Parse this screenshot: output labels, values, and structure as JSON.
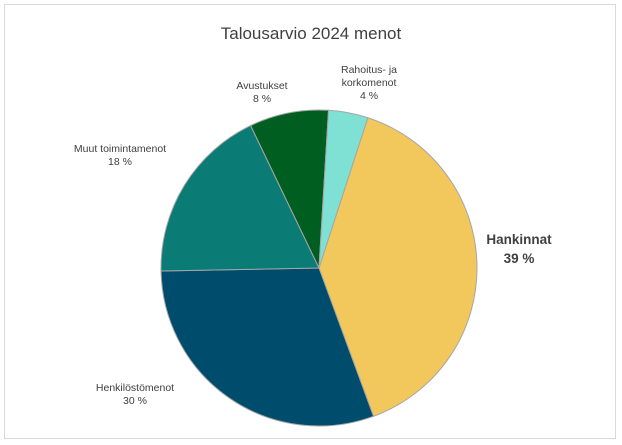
{
  "chart_data": {
    "type": "pie",
    "title": "Talousarvio 2024 menot",
    "start_angle_deg": 18,
    "direction": "clockwise",
    "slices": [
      {
        "label_lines": [
          "Hankinnat"
        ],
        "value": 39,
        "value_label": "39 %",
        "color": "#f2c75c",
        "emphasis": true
      },
      {
        "label_lines": [
          "Henkilöstömenot"
        ],
        "value": 30,
        "value_label": "30 %",
        "color": "#004c6d"
      },
      {
        "label_lines": [
          "Muut toimintamenot"
        ],
        "value": 18,
        "value_label": "18 %",
        "color": "#0a7b75"
      },
      {
        "label_lines": [
          "Avustukset"
        ],
        "value": 8,
        "value_label": "8 %",
        "color": "#005f20"
      },
      {
        "label_lines": [
          "Rahoitus- ja",
          "korkomenot"
        ],
        "value": 4,
        "value_label": "4 %",
        "color": "#7fe0d4"
      }
    ]
  }
}
